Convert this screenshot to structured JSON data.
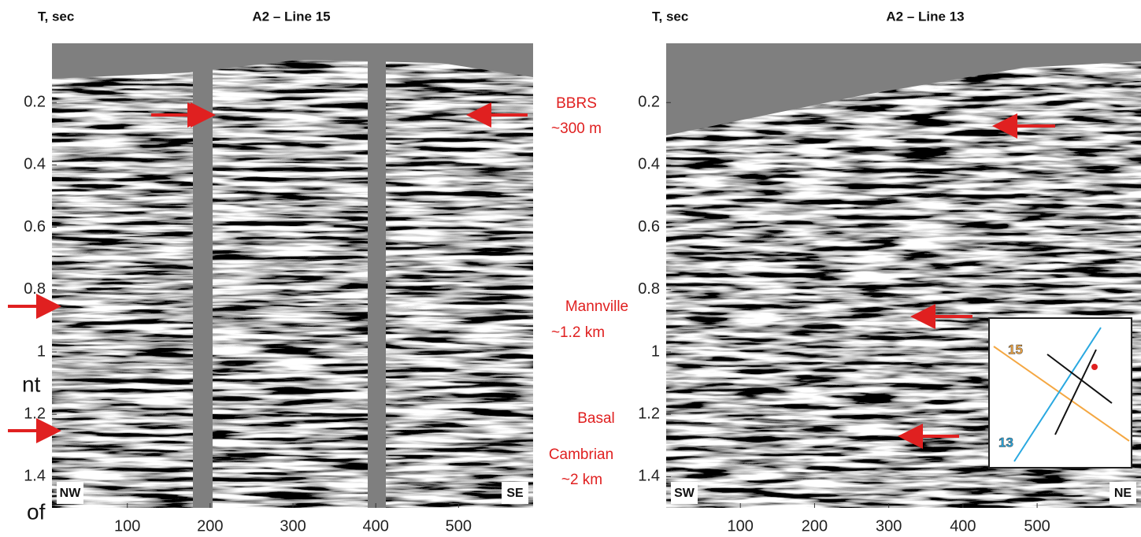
{
  "panels": [
    {
      "time_label": "T, sec",
      "title": "A2 – Line 15",
      "xlim": [
        9,
        590
      ],
      "ylim": [
        0.01,
        1.5
      ],
      "xticks": [
        100,
        200,
        300,
        400,
        500
      ],
      "yticks": [
        0.2,
        0.4,
        0.6,
        0.8,
        1,
        1.2,
        1.4
      ],
      "left_direction": "NW",
      "right_direction": "SE"
    },
    {
      "time_label": "T, sec",
      "title": "A2 – Line 13",
      "xlim": [
        0,
        640
      ],
      "ylim": [
        0.01,
        1.5
      ],
      "xticks": [
        100,
        200,
        300,
        400,
        500
      ],
      "yticks": [
        0.2,
        0.4,
        0.6,
        0.8,
        1,
        1.2,
        1.4
      ],
      "left_direction": "SW",
      "right_direction": "NE"
    }
  ],
  "annotations": {
    "bbrs": [
      "BBRS",
      "~300 m"
    ],
    "mannville": [
      "Mannville",
      "~1.2 km"
    ],
    "basal": [
      "Basal",
      "Cambrian",
      "~2 km"
    ]
  },
  "inset": {
    "orange_line": "15",
    "blue_line": "13"
  },
  "cropped_text": [
    "nt",
    "of"
  ]
}
